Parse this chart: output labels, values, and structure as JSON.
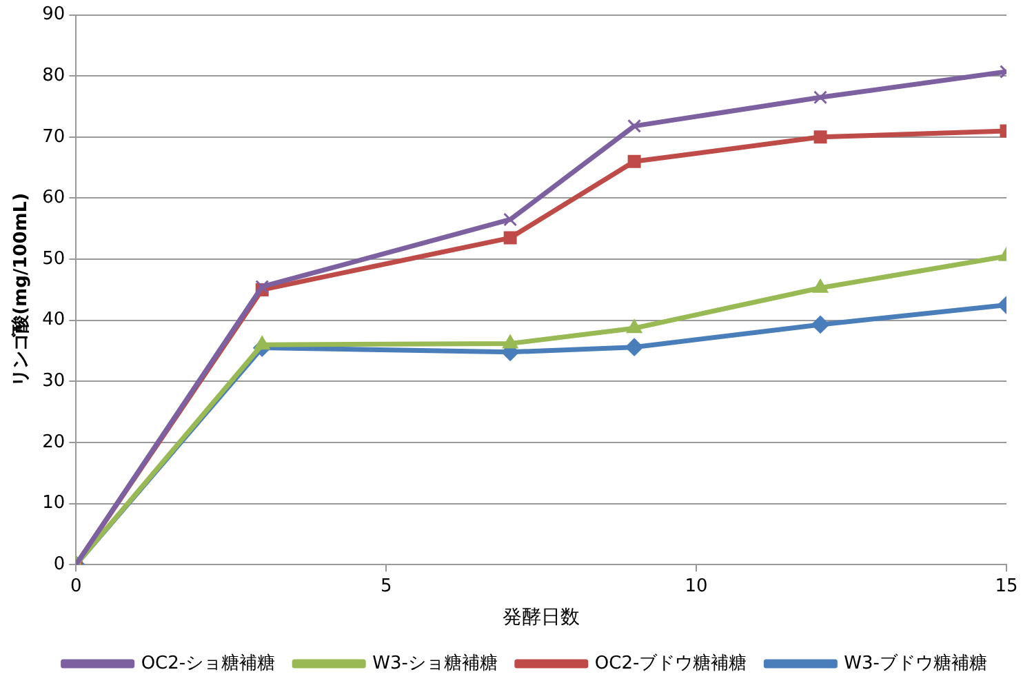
{
  "chart_data": {
    "type": "line",
    "xlabel": "発酵日数",
    "ylabel": "リンゴ酸(mg/100mL)",
    "x": [
      0,
      3,
      7,
      9,
      12,
      15
    ],
    "xlim": [
      0,
      15
    ],
    "xticks": [
      0,
      5,
      10,
      15
    ],
    "ylim": [
      0,
      90
    ],
    "yticks": [
      0,
      10,
      20,
      30,
      40,
      50,
      60,
      70,
      80,
      90
    ],
    "grid": "y",
    "legend": "bottom",
    "series": [
      {
        "name": "W3-ブドウ糖補糖",
        "color": "#4a7ebb",
        "marker": "diamond",
        "values": [
          0,
          35.5,
          34.8,
          35.6,
          39.3,
          42.5
        ]
      },
      {
        "name": "OC2-ブドウ糖補糖",
        "color": "#be4b48",
        "marker": "square",
        "values": [
          0,
          45,
          53.5,
          66,
          70,
          71
        ]
      },
      {
        "name": "W3-ショ糖補糖",
        "color": "#98b954",
        "marker": "triangle",
        "values": [
          0,
          36,
          36.2,
          38.7,
          45.3,
          50.5
        ]
      },
      {
        "name": "OC2-ショ糖補糖",
        "color": "#7d60a0",
        "marker": "cross",
        "values": [
          0,
          45.5,
          56.5,
          71.8,
          76.5,
          80.7
        ]
      }
    ]
  }
}
